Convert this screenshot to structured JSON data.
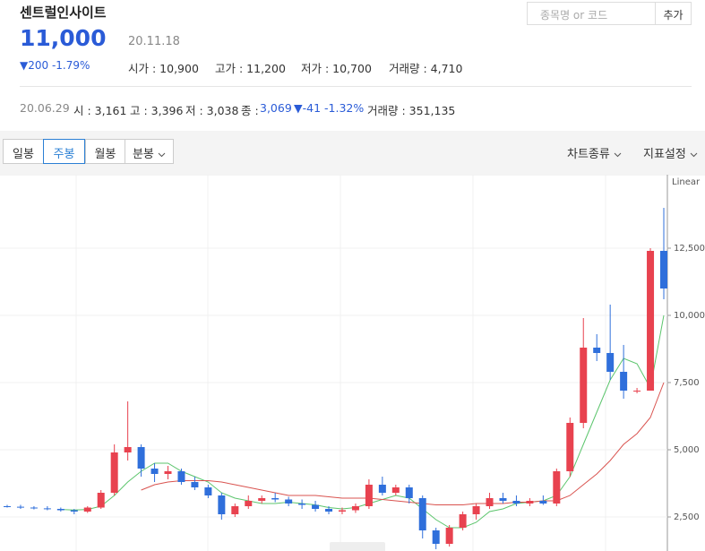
{
  "header": {
    "name": "센트럴인사이트",
    "price": "11,000",
    "date": "20.11.18",
    "change": "▼200 -1.79%",
    "stats": [
      "시가 : 10,900",
      "고가 : 11,200",
      "저가 : 10,700",
      "거래량 : 4,710"
    ]
  },
  "search": {
    "placeholder": "종목명 or 코드",
    "button": "추가"
  },
  "summary": {
    "date": "20.06.29",
    "items": [
      "시 : 3,161",
      "고 : 3,396",
      "저 : 3,038",
      "종 :"
    ],
    "close": "3,069",
    "change": "▼-41 -1.32%",
    "volume": "거래량 : 351,135"
  },
  "tabs": {
    "items": [
      "일봉",
      "주봉",
      "월봉",
      "분봉"
    ],
    "active": 1,
    "right": [
      "차트종류",
      "지표설정"
    ]
  },
  "chart": {
    "type": "candlestick",
    "scale_label": "Linear",
    "ylim": [
      1250,
      15150
    ],
    "yticks": [
      {
        "value": 2500,
        "label": "2,500"
      },
      {
        "value": 5000,
        "label": "5,000"
      },
      {
        "value": 7500,
        "label": "7,500"
      },
      {
        "value": 10000,
        "label": "10,000"
      },
      {
        "value": 12500,
        "label": "12,500"
      }
    ],
    "grid": true,
    "up_color": "#e8424f",
    "down_color": "#2f6fdb",
    "candles": [
      {
        "open": 2900,
        "high": 2950,
        "low": 2850,
        "close": 2880
      },
      {
        "open": 2880,
        "high": 2950,
        "low": 2800,
        "close": 2850
      },
      {
        "open": 2850,
        "high": 2900,
        "low": 2780,
        "close": 2820
      },
      {
        "open": 2820,
        "high": 2900,
        "low": 2750,
        "close": 2800
      },
      {
        "open": 2800,
        "high": 2850,
        "low": 2700,
        "close": 2750
      },
      {
        "open": 2750,
        "high": 2800,
        "low": 2600,
        "close": 2700
      },
      {
        "open": 2700,
        "high": 2900,
        "low": 2650,
        "close": 2850
      },
      {
        "open": 2850,
        "high": 3500,
        "low": 2800,
        "close": 3400
      },
      {
        "open": 3400,
        "high": 5200,
        "low": 3300,
        "close": 4900
      },
      {
        "open": 4900,
        "high": 6800,
        "low": 4600,
        "close": 5100
      },
      {
        "open": 5100,
        "high": 5200,
        "low": 4000,
        "close": 4300
      },
      {
        "open": 4300,
        "high": 4500,
        "low": 3800,
        "close": 4100
      },
      {
        "open": 4100,
        "high": 4400,
        "low": 3900,
        "close": 4200
      },
      {
        "open": 4200,
        "high": 4300,
        "low": 3700,
        "close": 3800
      },
      {
        "open": 3800,
        "high": 4000,
        "low": 3500,
        "close": 3600
      },
      {
        "open": 3600,
        "high": 3700,
        "low": 3200,
        "close": 3300
      },
      {
        "open": 3300,
        "high": 3400,
        "low": 2400,
        "close": 2600
      },
      {
        "open": 2600,
        "high": 3000,
        "low": 2500,
        "close": 2900
      },
      {
        "open": 2900,
        "high": 3300,
        "low": 2800,
        "close": 3100
      },
      {
        "open": 3100,
        "high": 3300,
        "low": 3000,
        "close": 3200
      },
      {
        "open": 3200,
        "high": 3400,
        "low": 3050,
        "close": 3150
      },
      {
        "open": 3150,
        "high": 3250,
        "low": 2900,
        "close": 3000
      },
      {
        "open": 3000,
        "high": 3150,
        "low": 2800,
        "close": 2950
      },
      {
        "open": 2950,
        "high": 3100,
        "low": 2700,
        "close": 2800
      },
      {
        "open": 2800,
        "high": 2900,
        "low": 2600,
        "close": 2700
      },
      {
        "open": 2700,
        "high": 2850,
        "low": 2600,
        "close": 2750
      },
      {
        "open": 2750,
        "high": 3000,
        "low": 2650,
        "close": 2900
      },
      {
        "open": 2900,
        "high": 3900,
        "low": 2800,
        "close": 3700
      },
      {
        "open": 3700,
        "high": 4000,
        "low": 3300,
        "close": 3400
      },
      {
        "open": 3400,
        "high": 3700,
        "low": 3300,
        "close": 3600
      },
      {
        "open": 3600,
        "high": 3700,
        "low": 3000,
        "close": 3200
      },
      {
        "open": 3200,
        "high": 3300,
        "low": 1700,
        "close": 2000
      },
      {
        "open": 2000,
        "high": 2100,
        "low": 1300,
        "close": 1500
      },
      {
        "open": 1500,
        "high": 2200,
        "low": 1400,
        "close": 2100
      },
      {
        "open": 2100,
        "high": 2700,
        "low": 2000,
        "close": 2600
      },
      {
        "open": 2600,
        "high": 3000,
        "low": 2400,
        "close": 2900
      },
      {
        "open": 2900,
        "high": 3400,
        "low": 2800,
        "close": 3200
      },
      {
        "open": 3200,
        "high": 3400,
        "low": 3000,
        "close": 3100
      },
      {
        "open": 3100,
        "high": 3300,
        "low": 2900,
        "close": 3000
      },
      {
        "open": 3000,
        "high": 3200,
        "low": 2900,
        "close": 3100
      },
      {
        "open": 3100,
        "high": 3300,
        "low": 2950,
        "close": 3000
      },
      {
        "open": 3000,
        "high": 4300,
        "low": 2900,
        "close": 4200
      },
      {
        "open": 4200,
        "high": 6200,
        "low": 4000,
        "close": 6000
      },
      {
        "open": 6000,
        "high": 9900,
        "low": 5800,
        "close": 8800
      },
      {
        "open": 8800,
        "high": 9300,
        "low": 8300,
        "close": 8600
      },
      {
        "open": 8600,
        "high": 10400,
        "low": 7600,
        "close": 7900
      },
      {
        "open": 7900,
        "high": 8900,
        "low": 6900,
        "close": 7200
      },
      {
        "open": 7200,
        "high": 7300,
        "low": 7100,
        "close": 7200
      },
      {
        "open": 7200,
        "high": 12500,
        "low": 7200,
        "close": 12400
      },
      {
        "open": 12400,
        "high": 14000,
        "low": 10600,
        "close": 11000
      }
    ],
    "lines": [
      {
        "color": "#5cc56d",
        "values": [
          null,
          null,
          null,
          null,
          2780,
          2760,
          2780,
          2900,
          3300,
          3800,
          4200,
          4500,
          4500,
          4200,
          4000,
          3800,
          3400,
          3200,
          3100,
          3000,
          3000,
          3050,
          3000,
          2950,
          2850,
          2800,
          2850,
          3000,
          3150,
          3300,
          3200,
          2800,
          2400,
          2100,
          2100,
          2300,
          2700,
          2800,
          3000,
          3050,
          3100,
          3300,
          4000,
          5200,
          6400,
          7600,
          8400,
          8200,
          7300,
          10000
        ]
      },
      {
        "color": "#d9534f",
        "values": [
          null,
          null,
          null,
          null,
          null,
          null,
          null,
          null,
          null,
          null,
          3500,
          3700,
          3800,
          3850,
          3850,
          3850,
          3800,
          3700,
          3600,
          3500,
          3400,
          3300,
          3300,
          3300,
          3250,
          3200,
          3200,
          3200,
          3150,
          3100,
          3050,
          3000,
          2950,
          2950,
          2950,
          3000,
          3000,
          3000,
          3050,
          3050,
          3100,
          3100,
          3300,
          3700,
          4100,
          4600,
          5200,
          5600,
          6200,
          7500
        ]
      }
    ]
  }
}
